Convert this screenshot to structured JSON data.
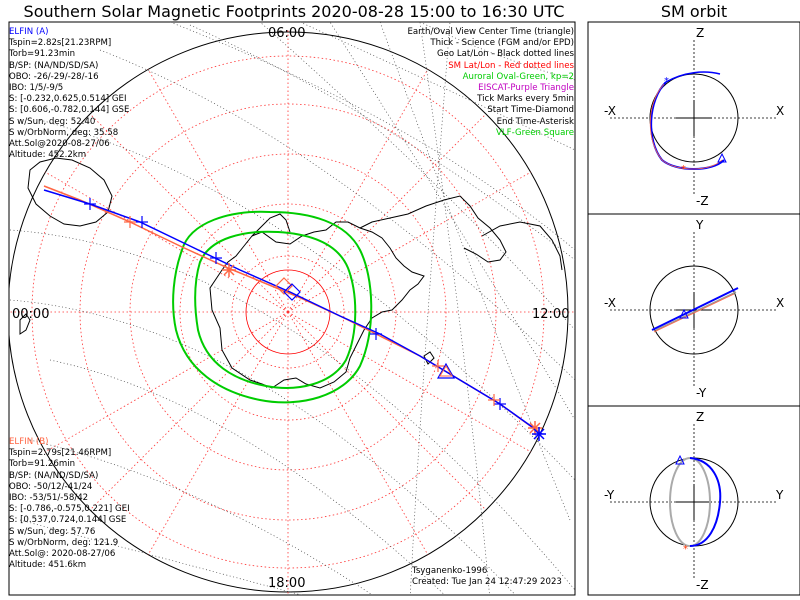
{
  "title": "Southern Solar Magnetic Footprints 2020-08-28 15:00 to 16:30 UTC",
  "orbit_title": "SM orbit",
  "map": {
    "time_labels": {
      "top": "06:00",
      "left": "00:00",
      "right": "12:00",
      "bottom": "18:00"
    }
  },
  "elfin_a": {
    "name": "ELFIN (A)",
    "color": "#0000ff",
    "lines": [
      "Tspin=2.82s[21.23RPM]",
      "Torb=91.23min",
      "B/SP: (NA/ND/SD/SA)",
      "OBO: -26/-29/-28/-16",
      "IBO: 1/5/-9/5",
      "S: [-0.232,0.625,0.514] GEI",
      "S: [0.606,-0.782,0.144] GSE",
      "S w/Sun, deg: 52.40",
      "S w/OrbNorm, deg: 35.58",
      "Att.Sol@2020-08-27/06",
      "Altitude: 452.2km"
    ]
  },
  "elfin_b": {
    "name": "ELFIN (B)",
    "color": "#ff6644",
    "lines": [
      "Tspin=2.79s[21.46RPM]",
      "Torb=91.26min",
      "B/SP: (NA/ND/SD/SA)",
      "OBO: -50/12/-41/24",
      "IBO: -53/51/-58/42",
      "S: [-0.786,-0.575,0.221] GEI",
      "S: [0.537,0.724,0.144] GSE",
      "S w/Sun, deg: 57.76",
      "S w/OrbNorm, deg: 121.9",
      "Att.Sol@: 2020-08-27/06",
      "Altitude: 451.6km"
    ]
  },
  "legend": [
    {
      "text": "Earth/Oval View Center Time (triangle)",
      "color": "#000000"
    },
    {
      "text": "Thick - Science (FGM and/or EPD)",
      "color": "#000000"
    },
    {
      "text": "Geo Lat/Lon - Black dotted lines",
      "color": "#000000"
    },
    {
      "text": "SM Lat/Lon - Red dotted lines",
      "color": "#ff0000"
    },
    {
      "text": "Auroral Oval-Green, kp=2",
      "color": "#00cc00"
    },
    {
      "text": "EISCAT-Purple Triangle",
      "color": "#c000c0"
    },
    {
      "text": "Tick Marks every 5min",
      "color": "#000000"
    },
    {
      "text": "Start Time-Diamond",
      "color": "#000000"
    },
    {
      "text": "End Time-Asterisk",
      "color": "#000000"
    },
    {
      "text": "VLF-Green Square",
      "color": "#00cc00"
    }
  ],
  "credits": {
    "author": "Tsyganenko-1996",
    "created": "Created: Tue Jan 24 12:47:29 2023"
  },
  "orbit_panels": [
    {
      "top": "Z",
      "bottom": "-Z",
      "left": "-X",
      "right": "X"
    },
    {
      "top": "Y",
      "bottom": "-Y",
      "left": "-X",
      "right": "X"
    },
    {
      "top": "Z",
      "bottom": "-Z",
      "left": "-Y",
      "right": "Y"
    }
  ]
}
